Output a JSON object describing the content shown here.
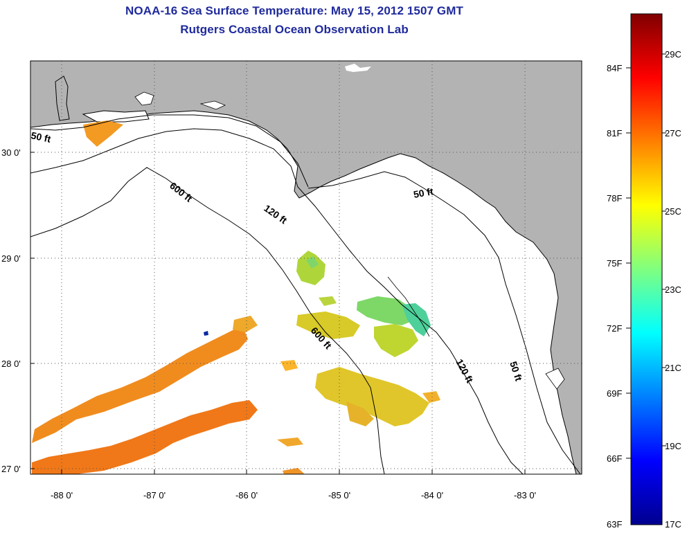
{
  "title": {
    "line1": "NOAA-16 Sea Surface Temperature:  May 15, 2012 1507 GMT",
    "line2": "Rutgers Coastal Ocean Observation Lab"
  },
  "map": {
    "lat_ticks": [
      "30 0'",
      "29 0'",
      "28 0'",
      "27 0'"
    ],
    "lon_ticks": [
      "-88 0'",
      "-87 0'",
      "-86 0'",
      "-85 0'",
      "-84 0'",
      "-83 0'"
    ],
    "contours": [
      "50 ft",
      "600 ft",
      "120 ft",
      "50 ft",
      "600 ft",
      "120 ft",
      "50 ft"
    ],
    "colors": {
      "land": "#b3b3b3",
      "water": "#ffffff",
      "coast": "#000000"
    }
  },
  "colorbar": {
    "f_labels": [
      "84F",
      "81F",
      "78F",
      "75F",
      "72F",
      "69F",
      "66F",
      "63F"
    ],
    "c_labels": [
      "29C",
      "27C",
      "25C",
      "23C",
      "21C",
      "19C",
      "17C"
    ]
  }
}
